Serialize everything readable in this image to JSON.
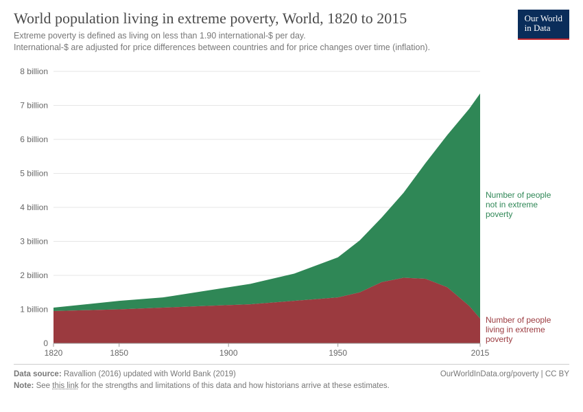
{
  "title": "World population living in extreme poverty, World, 1820 to 2015",
  "subtitle_line1": "Extreme poverty is defined as living on less than 1.90 international-$ per day.",
  "subtitle_line2": "International-$ are adjusted for price differences between countries and for price changes over time (inflation).",
  "logo_line1": "Our World",
  "logo_line2": "in Data",
  "chart": {
    "type": "stacked-area",
    "x_min": 1820,
    "x_max": 2015,
    "y_min": 0,
    "y_max": 8,
    "y_unit": "billion",
    "y_ticks": [
      0,
      1,
      2,
      3,
      4,
      5,
      6,
      7,
      8
    ],
    "y_tick_labels": [
      "0",
      "1 billion",
      "2 billion",
      "3 billion",
      "4 billion",
      "5 billion",
      "6 billion",
      "7 billion",
      "8 billion"
    ],
    "x_ticks": [
      1820,
      1850,
      1900,
      1950,
      2015
    ],
    "grid_color": "#e5e5e5",
    "axis_color": "#999999",
    "background_color": "#ffffff",
    "tick_fontsize": 12,
    "series": [
      {
        "name": "in_poverty",
        "label": "Number of people\nliving in extreme\npoverty",
        "color": "#9b3a3f",
        "label_color": "#9b3a3f",
        "years": [
          1820,
          1850,
          1870,
          1890,
          1910,
          1930,
          1950,
          1960,
          1970,
          1980,
          1990,
          2000,
          2010,
          2015
        ],
        "values": [
          0.95,
          1.0,
          1.05,
          1.1,
          1.15,
          1.25,
          1.35,
          1.5,
          1.8,
          1.93,
          1.9,
          1.65,
          1.1,
          0.73
        ]
      },
      {
        "name": "not_in_poverty",
        "label": "Number of people\nnot in extreme\npoverty",
        "color": "#2f8756",
        "label_color": "#2f8756",
        "years": [
          1820,
          1850,
          1870,
          1890,
          1910,
          1930,
          1950,
          1960,
          1970,
          1980,
          1990,
          2000,
          2010,
          2015
        ],
        "values": [
          0.1,
          0.25,
          0.3,
          0.45,
          0.6,
          0.8,
          1.18,
          1.53,
          1.9,
          2.5,
          3.4,
          4.48,
          5.8,
          6.62
        ]
      }
    ]
  },
  "footer": {
    "source_label": "Data source:",
    "source_text": "Ravallion (2016) updated with World Bank (2019)",
    "note_label": "Note:",
    "note_text_prefix": "See ",
    "note_link_text": "this link",
    "note_text_suffix": " for the strengths and limitations of this data and how historians arrive at these estimates.",
    "attribution": "OurWorldInData.org/poverty",
    "license": "CC BY"
  }
}
